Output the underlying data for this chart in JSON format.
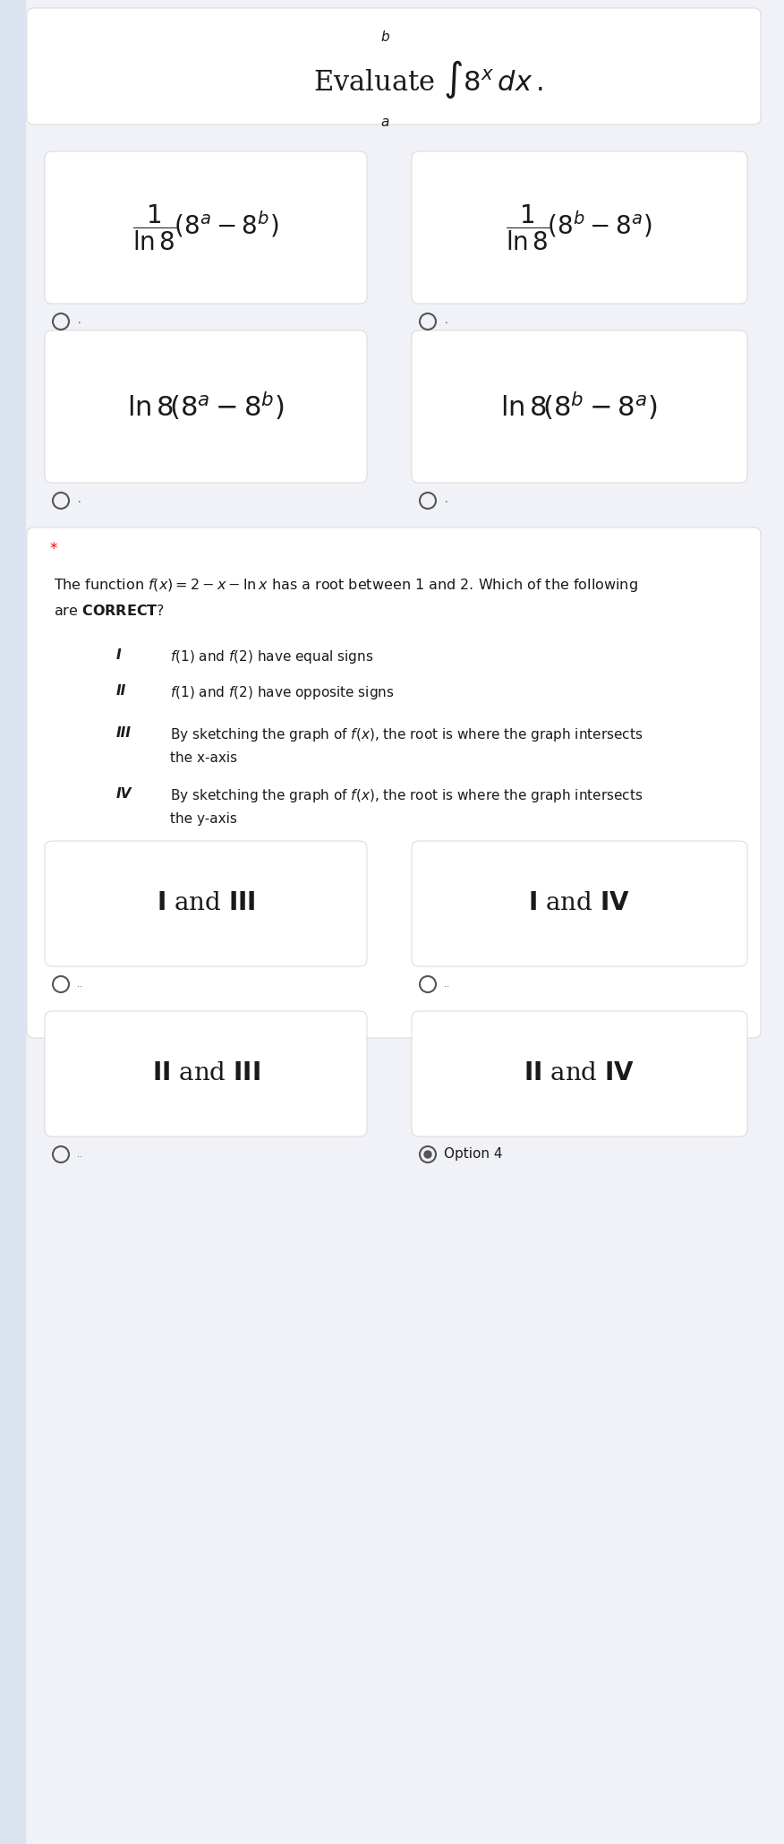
{
  "bg_color": "#f0f2f7",
  "card_color": "#ffffff",
  "text_color": "#1a1a1a",
  "title_q1": "Evaluate $\\int_a^b 8^x\\,dx$.",
  "option1_q1": "$\\dfrac{1}{\\ln 8}\\left(8^a - 8^b\\right)$",
  "option2_q1": "$\\dfrac{1}{\\ln 8}\\left(8^b - 8^a\\right)$",
  "option3_q1": "$\\ln 8\\left(8^a - 8^b\\right)$",
  "option4_q1": "$\\ln 8\\left(8^b - 8^a\\right)$",
  "star": "*",
  "q2_text1": "The function $f(x) = 2 - x - \\ln x$ has a root between 1 and 2. Which of the following",
  "q2_text2": "are $\\mathbf{CORRECT}$?",
  "roman_I": "I",
  "roman_II": "II",
  "roman_III": "III",
  "roman_IV": "IV",
  "stmt_I": "$f(1)$ and $f(2)$ have equal signs",
  "stmt_II": "$f(1)$ and $f(2)$ have opposite signs",
  "stmt_III": "By sketching the graph of $f(x)$, the root is where the graph intersects",
  "stmt_III2": "the x-axis",
  "stmt_IV": "By sketching the graph of $f(x)$, the root is where the graph intersects",
  "stmt_IV2": "the y-axis",
  "option1_q2": "$\\mathbf{I}$ and $\\mathbf{III}$",
  "option2_q2": "$\\mathbf{I}$ and $\\mathbf{IV}$",
  "option3_q2": "$\\mathbf{II}$ and $\\mathbf{III}$",
  "option4_q2": "$\\mathbf{II}$ and $\\mathbf{IV}$",
  "option4_label": "Option 4"
}
